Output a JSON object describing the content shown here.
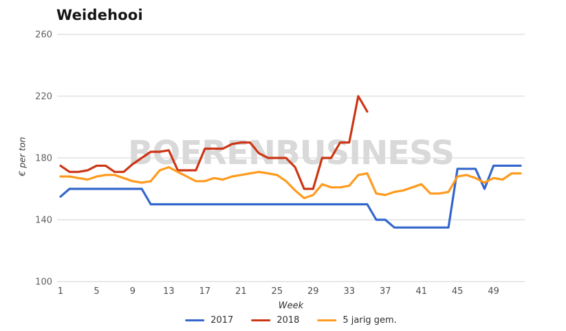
{
  "chart": {
    "title": "Weidehooi",
    "ylabel": "€ per ton",
    "xlabel": "Week",
    "watermark": "BOERENBUSINESS"
  },
  "legend": {
    "items": [
      {
        "label": "2017",
        "color": "#3366cc"
      },
      {
        "label": "2018",
        "color": "#cc3514"
      },
      {
        "label": "5 jarig gem.",
        "color": "#ff9a1c"
      }
    ]
  },
  "chart_data": {
    "type": "line",
    "title": "Weidehooi",
    "xlabel": "Week",
    "ylabel": "€ per ton",
    "watermark": "BOERENBUSINESS",
    "x_unit": "week",
    "xlim": [
      1,
      52
    ],
    "ylim": [
      100,
      260
    ],
    "x_ticks": [
      1,
      5,
      9,
      13,
      17,
      21,
      25,
      29,
      33,
      37,
      41,
      45,
      49
    ],
    "y_ticks": [
      100,
      140,
      180,
      220,
      260
    ],
    "grid": "horizontal",
    "legend_position": "bottom",
    "colors": {
      "grid": "#d2d2d2",
      "tick_text": "#5f5f5f",
      "watermark": "#d9d9d9"
    },
    "series": [
      {
        "name": "2017",
        "color": "#3366cc",
        "start_week": 1,
        "values": [
          155,
          160,
          160,
          160,
          160,
          160,
          160,
          160,
          160,
          160,
          150,
          150,
          150,
          150,
          150,
          150,
          150,
          150,
          150,
          150,
          150,
          150,
          150,
          150,
          150,
          150,
          150,
          150,
          150,
          150,
          150,
          150,
          150,
          150,
          150,
          140,
          140,
          135,
          135,
          135,
          135,
          135,
          135,
          135,
          173,
          173,
          173,
          160,
          175,
          175,
          175,
          175
        ]
      },
      {
        "name": "2018",
        "color": "#cc3514",
        "start_week": 1,
        "values": [
          175,
          171,
          171,
          172,
          175,
          175,
          171,
          171,
          176,
          180,
          184,
          184,
          185,
          172,
          172,
          172,
          186,
          186,
          186,
          189,
          190,
          190,
          183,
          180,
          180,
          180,
          174,
          160,
          160,
          180,
          180,
          190,
          190,
          220,
          210
        ]
      },
      {
        "name": "5 jarig gem.",
        "color": "#ff9a1c",
        "start_week": 1,
        "values": [
          168,
          168,
          167,
          166,
          168,
          169,
          169,
          167,
          165,
          164,
          165,
          172,
          174,
          171,
          168,
          165,
          165,
          167,
          166,
          168,
          169,
          170,
          171,
          170,
          169,
          165,
          159,
          154,
          156,
          163,
          161,
          161,
          162,
          169,
          170,
          157,
          156,
          158,
          159,
          161,
          163,
          157,
          157,
          158,
          168,
          169,
          167,
          164,
          167,
          166,
          170,
          170
        ]
      }
    ]
  }
}
